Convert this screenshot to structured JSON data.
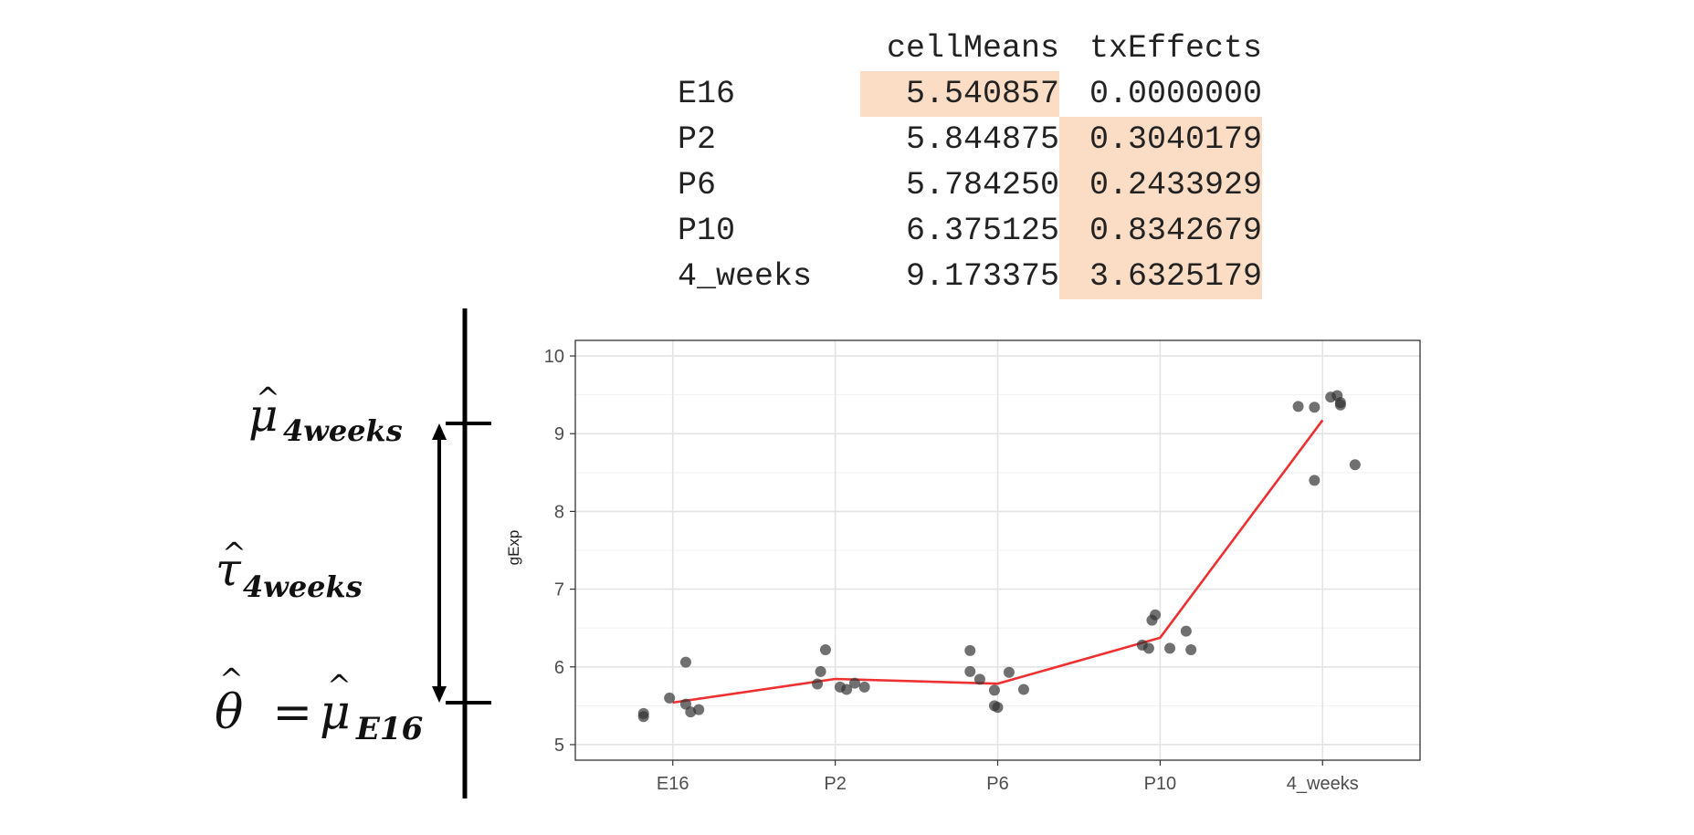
{
  "table": {
    "headers": [
      "cellMeans",
      "txEffects"
    ],
    "rows": [
      {
        "name": "E16",
        "cellMeans": "5.540857",
        "txEffects": "0.0000000",
        "hl_mean": true,
        "hl_eff": false
      },
      {
        "name": "P2",
        "cellMeans": "5.844875",
        "txEffects": "0.3040179",
        "hl_mean": false,
        "hl_eff": true
      },
      {
        "name": "P6",
        "cellMeans": "5.784250",
        "txEffects": "0.2433929",
        "hl_mean": false,
        "hl_eff": true
      },
      {
        "name": "P10",
        "cellMeans": "6.375125",
        "txEffects": "0.8342679",
        "hl_mean": false,
        "hl_eff": true
      },
      {
        "name": "4_weeks",
        "cellMeans": "9.173375",
        "txEffects": "3.6325179",
        "hl_mean": false,
        "hl_eff": true
      }
    ],
    "highlight_color": "#fbdcc4"
  },
  "annotations": {
    "mu_4weeks": "μ̂4weeks",
    "tau_4weeks": "τ̂4weeks",
    "theta_eq": "θ̂ = μ̂E16"
  },
  "chart_data": {
    "type": "scatter",
    "categories": [
      "E16",
      "P2",
      "P6",
      "P10",
      "4_weeks"
    ],
    "ylabel": "gExp",
    "xlabel": "",
    "ylim": [
      4.8,
      10.2
    ],
    "yticks": [
      5,
      6,
      7,
      8,
      9,
      10
    ],
    "grid": true,
    "point_color": "#333333",
    "line_color": "#ee3030",
    "points": [
      {
        "category": "E16",
        "offset": -0.18,
        "y": 5.4
      },
      {
        "category": "E16",
        "offset": -0.18,
        "y": 5.36
      },
      {
        "category": "E16",
        "offset": -0.02,
        "y": 5.6
      },
      {
        "category": "E16",
        "offset": 0.08,
        "y": 6.06
      },
      {
        "category": "E16",
        "offset": 0.08,
        "y": 5.52
      },
      {
        "category": "E16",
        "offset": 0.11,
        "y": 5.42
      },
      {
        "category": "E16",
        "offset": 0.16,
        "y": 5.45
      },
      {
        "category": "P2",
        "offset": -0.11,
        "y": 5.78
      },
      {
        "category": "P2",
        "offset": -0.09,
        "y": 5.94
      },
      {
        "category": "P2",
        "offset": -0.06,
        "y": 6.22
      },
      {
        "category": "P2",
        "offset": 0.03,
        "y": 5.74
      },
      {
        "category": "P2",
        "offset": 0.07,
        "y": 5.71
      },
      {
        "category": "P2",
        "offset": 0.12,
        "y": 5.79
      },
      {
        "category": "P2",
        "offset": 0.18,
        "y": 5.74
      },
      {
        "category": "P6",
        "offset": -0.17,
        "y": 6.21
      },
      {
        "category": "P6",
        "offset": -0.17,
        "y": 5.94
      },
      {
        "category": "P6",
        "offset": -0.11,
        "y": 5.84
      },
      {
        "category": "P6",
        "offset": -0.02,
        "y": 5.7
      },
      {
        "category": "P6",
        "offset": -0.02,
        "y": 5.5
      },
      {
        "category": "P6",
        "offset": 0.0,
        "y": 5.48
      },
      {
        "category": "P6",
        "offset": 0.07,
        "y": 5.93
      },
      {
        "category": "P6",
        "offset": 0.16,
        "y": 5.71
      },
      {
        "category": "P10",
        "offset": -0.11,
        "y": 6.28
      },
      {
        "category": "P10",
        "offset": -0.07,
        "y": 6.24
      },
      {
        "category": "P10",
        "offset": -0.05,
        "y": 6.6
      },
      {
        "category": "P10",
        "offset": -0.03,
        "y": 6.67
      },
      {
        "category": "P10",
        "offset": 0.06,
        "y": 6.24
      },
      {
        "category": "P10",
        "offset": 0.16,
        "y": 6.46
      },
      {
        "category": "P10",
        "offset": 0.19,
        "y": 6.22
      },
      {
        "category": "4_weeks",
        "offset": -0.15,
        "y": 9.35
      },
      {
        "category": "4_weeks",
        "offset": -0.05,
        "y": 8.4
      },
      {
        "category": "4_weeks",
        "offset": -0.05,
        "y": 9.34
      },
      {
        "category": "4_weeks",
        "offset": 0.05,
        "y": 9.47
      },
      {
        "category": "4_weeks",
        "offset": 0.09,
        "y": 9.49
      },
      {
        "category": "4_weeks",
        "offset": 0.11,
        "y": 9.4
      },
      {
        "category": "4_weeks",
        "offset": 0.11,
        "y": 9.37
      },
      {
        "category": "4_weeks",
        "offset": 0.2,
        "y": 8.6
      }
    ],
    "means": [
      {
        "category": "E16",
        "y": 5.540857
      },
      {
        "category": "P2",
        "y": 5.844875
      },
      {
        "category": "P6",
        "y": 5.78425
      },
      {
        "category": "P10",
        "y": 6.375125
      },
      {
        "category": "4_weeks",
        "y": 9.173375
      }
    ]
  }
}
